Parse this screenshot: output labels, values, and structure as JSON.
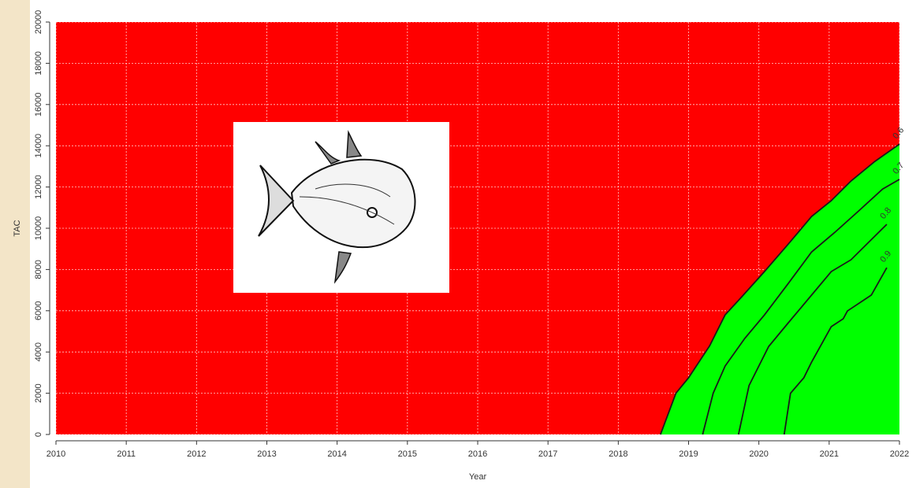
{
  "chart_data": {
    "type": "contour",
    "x_label": "Year",
    "y_label": "TAC",
    "xlim": [
      2010,
      2022
    ],
    "xticks": [
      2010,
      2011,
      2012,
      2013,
      2014,
      2015,
      2016,
      2017,
      2018,
      2019,
      2020,
      2021,
      2022
    ],
    "ylim": [
      0,
      20000
    ],
    "yticks": [
      0,
      2000,
      4000,
      6000,
      8000,
      10000,
      12000,
      14000,
      16000,
      18000,
      20000
    ],
    "grid": true,
    "background_color": "#ff0000",
    "fill_color": "#00ff00",
    "line_color": "#1a1a1a",
    "series": [
      {
        "name": "0.6",
        "x": [
          2018.6,
          2018.82,
          2019.0,
          2019.3,
          2019.52,
          2019.75,
          2020.08,
          2020.42,
          2020.75,
          2021.03,
          2021.31,
          2021.65,
          2022
        ],
        "values": [
          0,
          2000,
          2750,
          4300,
          5800,
          6650,
          7900,
          9240,
          10570,
          11340,
          12290,
          13240,
          14080
        ]
      },
      {
        "name": "0.7",
        "x": [
          2019.2,
          2019.35,
          2019.52,
          2019.8,
          2020.08,
          2020.42,
          2020.75,
          2021.08,
          2021.42,
          2021.76,
          2022
        ],
        "values": [
          0,
          2000,
          3320,
          4660,
          5800,
          7330,
          8850,
          9800,
          10840,
          11900,
          12370
        ]
      },
      {
        "name": "0.8",
        "x": [
          2019.71,
          2019.86,
          2020.14,
          2020.42,
          2020.75,
          2021.03,
          2021.31,
          2021.65,
          2021.82
        ],
        "values": [
          0,
          2370,
          4270,
          5420,
          6760,
          7900,
          8470,
          9620,
          10190
        ]
      },
      {
        "name": "0.9",
        "x": [
          2020.36,
          2020.45,
          2020.64,
          2020.75,
          2021.03,
          2021.2,
          2021.26,
          2021.6,
          2021.82
        ],
        "values": [
          0,
          2000,
          2750,
          3510,
          5230,
          5610,
          5990,
          6760,
          8090
        ]
      }
    ]
  }
}
